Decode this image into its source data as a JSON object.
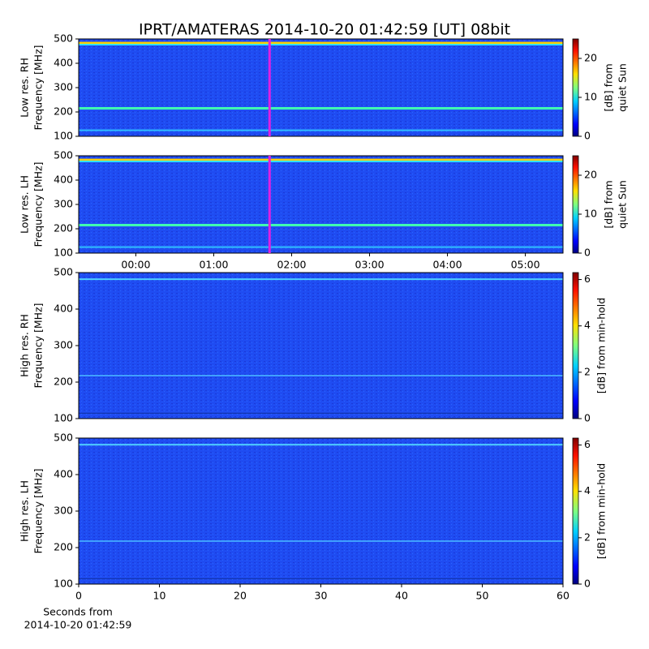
{
  "title": "IPRT/AMATERAS 2014-10-20 01:42:59 [UT]   08bit",
  "chart_data": [
    {
      "type": "spectrogram",
      "ylabel": [
        "Low res. RH",
        "Frequency [MHz]"
      ],
      "ylim": [
        100,
        500
      ],
      "yticks": [
        100,
        200,
        300,
        400,
        500
      ],
      "xlim": [
        -44,
        329
      ],
      "marker_x": 103,
      "marker_color": "#e020e0",
      "colorbar": {
        "label": [
          "[dB] from",
          "quiet Sun"
        ],
        "lim": [
          0,
          25
        ],
        "ticks": [
          0,
          10,
          20
        ]
      }
    },
    {
      "type": "spectrogram",
      "ylabel": [
        "Low res. LH",
        "Frequency [MHz]"
      ],
      "ylim": [
        100,
        500
      ],
      "yticks": [
        100,
        200,
        300,
        400,
        500
      ],
      "xlim": [
        -44,
        329
      ],
      "xticks": [
        {
          "value": 0,
          "label": "00:00"
        },
        {
          "value": 60,
          "label": "01:00"
        },
        {
          "value": 120,
          "label": "02:00"
        },
        {
          "value": 180,
          "label": "03:00"
        },
        {
          "value": 240,
          "label": "04:00"
        },
        {
          "value": 300,
          "label": "05:00"
        }
      ],
      "marker_x": 103,
      "marker_color": "#e020e0",
      "colorbar": {
        "label": [
          "[dB] from",
          "quiet Sun"
        ],
        "lim": [
          0,
          25
        ],
        "ticks": [
          0,
          10,
          20
        ]
      }
    },
    {
      "type": "spectrogram",
      "ylabel": [
        "High res. RH",
        "Frequency [MHz]"
      ],
      "ylim": [
        100,
        500
      ],
      "yticks": [
        100,
        200,
        300,
        400,
        500
      ],
      "xlim": [
        0,
        60
      ],
      "colorbar": {
        "label": [
          "[dB] from min-hold"
        ],
        "lim": [
          0,
          6.3
        ],
        "ticks": [
          0,
          2,
          4,
          6
        ]
      }
    },
    {
      "type": "spectrogram",
      "ylabel": [
        "High res. LH",
        "Frequency [MHz]"
      ],
      "ylim": [
        100,
        500
      ],
      "yticks": [
        100,
        200,
        300,
        400,
        500
      ],
      "xlim": [
        0,
        60
      ],
      "xticks": [
        0,
        10,
        20,
        30,
        40,
        50,
        60
      ],
      "xlabel": [
        "Seconds from",
        "2014-10-20 01:42:59"
      ],
      "colorbar": {
        "label": [
          "[dB] from min-hold"
        ],
        "lim": [
          0,
          6.3
        ],
        "ticks": [
          0,
          2,
          4,
          6
        ]
      }
    }
  ]
}
